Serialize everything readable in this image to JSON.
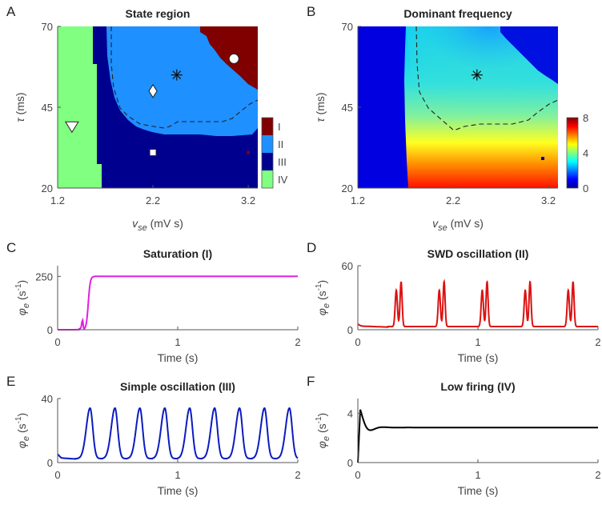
{
  "state_panel": {
    "letter": "A",
    "title": "State region",
    "type": "heatmap",
    "xlabel_main": "v",
    "xlabel_sub": "se",
    "xlabel_unit": " (mV s)",
    "ylabel_main": "τ",
    "ylabel_unit": " (ms)",
    "xlim": [
      1.2,
      3.3
    ],
    "ylim": [
      20,
      70
    ],
    "xticks": [
      1.2,
      2.2,
      3.2
    ],
    "yticks": [
      20,
      45,
      70
    ],
    "colorbar": [
      {
        "label": "I",
        "color": "#800000"
      },
      {
        "label": "II",
        "color": "#1e90ff"
      },
      {
        "label": "III",
        "color": "#00008f"
      },
      {
        "label": "IV",
        "color": "#80ff80"
      }
    ],
    "markers": [
      {
        "shape": "circle",
        "x": 3.05,
        "y": 60
      },
      {
        "shape": "asterisk",
        "x": 2.45,
        "y": 55
      },
      {
        "shape": "diamond",
        "x": 2.2,
        "y": 50
      },
      {
        "shape": "triangle-down",
        "x": 1.35,
        "y": 39
      },
      {
        "shape": "square",
        "x": 2.2,
        "y": 31
      }
    ]
  },
  "freq_panel": {
    "letter": "B",
    "title": "Dominant frequency",
    "type": "heatmap",
    "xlabel_main": "v",
    "xlabel_sub": "se",
    "xlabel_unit": " (mV s)",
    "ylabel_main": "τ",
    "ylabel_unit": " (ms)",
    "xlim": [
      1.2,
      3.3
    ],
    "ylim": [
      20,
      70
    ],
    "xticks": [
      1.2,
      2.2,
      3.2
    ],
    "yticks": [
      20,
      45,
      70
    ],
    "cbar_ticks": [
      0,
      4,
      8
    ],
    "markers": [
      {
        "shape": "asterisk",
        "x": 2.45,
        "y": 55
      }
    ]
  },
  "timeseries": [
    {
      "letter": "C",
      "title": "Saturation (I)",
      "color": "#e020e0",
      "ylim": [
        0,
        300
      ],
      "yticks": [
        0,
        250
      ],
      "xlim": [
        0,
        2
      ],
      "xticks": [
        0,
        1,
        2
      ],
      "xlabel": "Time (s)",
      "kind": "saturation"
    },
    {
      "letter": "D",
      "title": "SWD oscillation (II)",
      "color": "#dd1111",
      "ylim": [
        0,
        60
      ],
      "yticks": [
        0,
        60
      ],
      "xlim": [
        0,
        2
      ],
      "xticks": [
        0,
        1,
        2
      ],
      "xlabel": "Time (s)",
      "kind": "swd"
    },
    {
      "letter": "E",
      "title": "Simple oscillation (III)",
      "color": "#0b1bbf",
      "ylim": [
        0,
        40
      ],
      "yticks": [
        0,
        40
      ],
      "xlim": [
        0,
        2
      ],
      "xticks": [
        0,
        1,
        2
      ],
      "xlabel": "Time (s)",
      "kind": "simple"
    },
    {
      "letter": "F",
      "title": "Low firing (IV)",
      "color": "#000000",
      "ylim": [
        0,
        5.2
      ],
      "yticks": [
        0,
        4
      ],
      "xlim": [
        0,
        2
      ],
      "xticks": [
        0,
        1,
        2
      ],
      "xlabel": "Time (s)",
      "kind": "low"
    }
  ],
  "ts_ylabel": {
    "main": "φ",
    "sub": "e",
    "unit_open": " (s",
    "unit_sup": "-1",
    "unit_close": ")"
  },
  "chart_data": [
    {
      "type": "heatmap",
      "title": "State region",
      "xlabel": "vse (mV s)",
      "ylabel": "τ (ms)",
      "xlim": [
        1.2,
        3.3
      ],
      "ylim": [
        20,
        70
      ],
      "categories": [
        "I",
        "II",
        "III",
        "IV"
      ]
    },
    {
      "type": "heatmap",
      "title": "Dominant frequency",
      "xlabel": "vse (mV s)",
      "ylabel": "τ (ms)",
      "xlim": [
        1.2,
        3.3
      ],
      "ylim": [
        20,
        70
      ],
      "colorbar_range": [
        0,
        8
      ]
    },
    {
      "type": "line",
      "title": "Saturation (I)",
      "xlabel": "Time (s)",
      "ylabel": "φe (s-1)",
      "x": [
        0,
        0.15,
        0.2,
        0.22,
        0.25,
        0.3,
        0.5,
        1,
        2
      ],
      "values": [
        0,
        2,
        40,
        20,
        200,
        250,
        250,
        250,
        250
      ]
    },
    {
      "type": "line",
      "title": "SWD oscillation (II)",
      "xlabel": "Time (s)",
      "ylabel": "φe (s-1)",
      "x": [
        0,
        0.3,
        0.35,
        0.66,
        0.7,
        1.02,
        1.06,
        1.38,
        1.42,
        1.74,
        1.78,
        2
      ],
      "values": [
        3,
        37,
        45,
        37,
        45,
        37,
        45,
        37,
        45,
        37,
        45,
        6
      ]
    },
    {
      "type": "line",
      "title": "Simple oscillation (III)",
      "xlabel": "Time (s)",
      "ylabel": "φe (s-1)",
      "x": [
        0,
        0.27,
        0.48,
        0.69,
        0.9,
        1.1,
        1.31,
        1.52,
        1.73,
        1.93
      ],
      "values": [
        3,
        34,
        34,
        34,
        34,
        34,
        34,
        34,
        34,
        34
      ]
    },
    {
      "type": "line",
      "title": "Low firing (IV)",
      "xlabel": "Time (s)",
      "ylabel": "φe (s-1)",
      "x": [
        0,
        0.02,
        0.1,
        0.3,
        2
      ],
      "values": [
        0,
        4.3,
        1.3,
        2.9,
        2.9
      ]
    }
  ]
}
